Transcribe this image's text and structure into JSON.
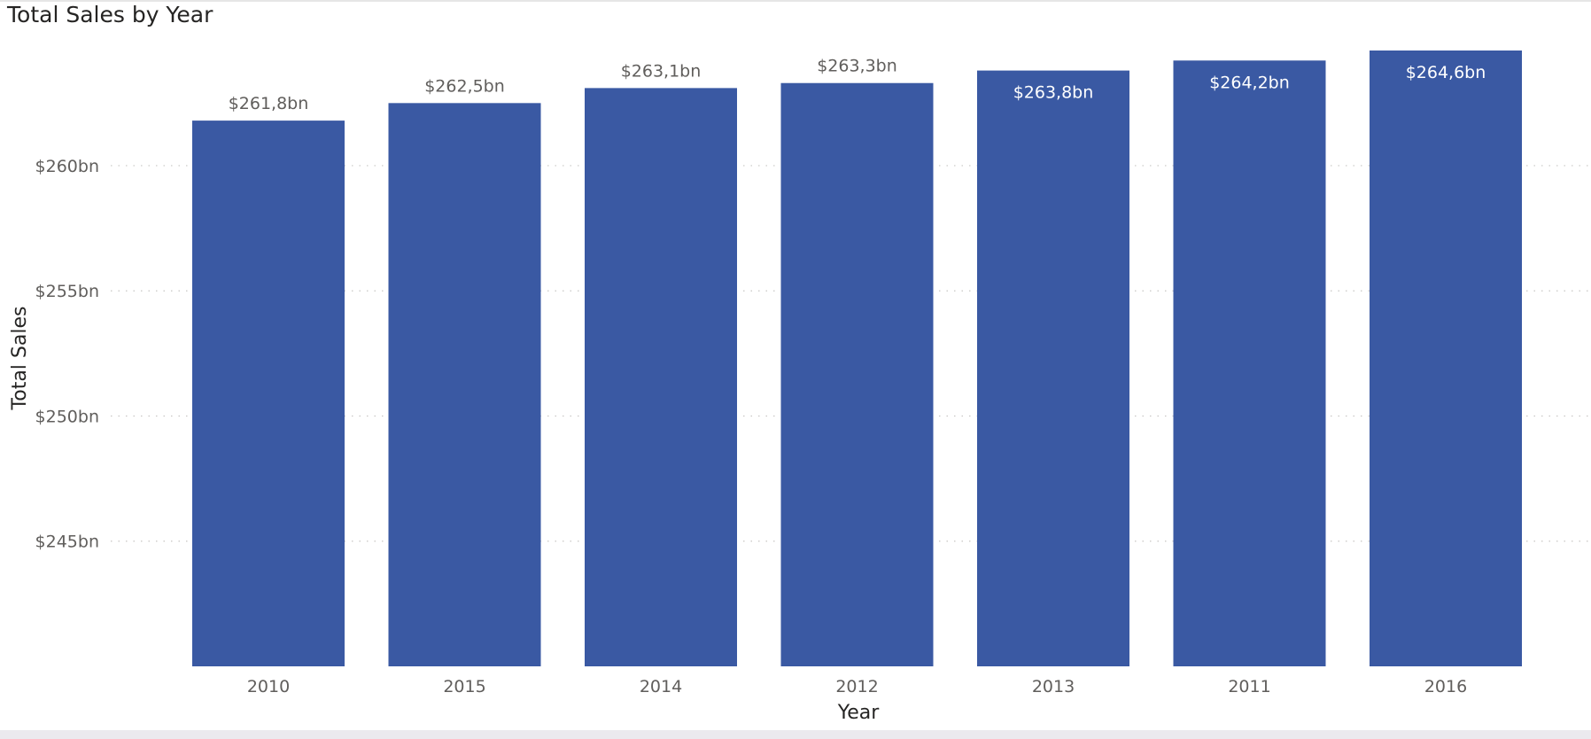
{
  "visual": {
    "title": "Total Sales by Year"
  },
  "colors": {
    "bar": "#3a59a3",
    "label_outside": "#605e5c",
    "label_inside": "#ffffff",
    "gridline": "#c8c6c4"
  },
  "chart_data": {
    "type": "bar",
    "title": "Total Sales by Year",
    "xlabel": "Year",
    "ylabel": "Total Sales",
    "unit": "bn",
    "categories": [
      "2010",
      "2015",
      "2014",
      "2012",
      "2013",
      "2011",
      "2016"
    ],
    "values": [
      261.8,
      262.5,
      263.1,
      263.3,
      263.8,
      264.2,
      264.6
    ],
    "data_labels": [
      "$261,8bn",
      "$262,5bn",
      "$263,1bn",
      "$263,3bn",
      "$263,8bn",
      "$264,2bn",
      "$264,6bn"
    ],
    "yticks": [
      245,
      250,
      255,
      260
    ],
    "ytick_labels": [
      "$245bn",
      "$250bn",
      "$255bn",
      "$260bn"
    ],
    "ylim": [
      240,
      264.6
    ],
    "grid": true,
    "legend": "none"
  }
}
